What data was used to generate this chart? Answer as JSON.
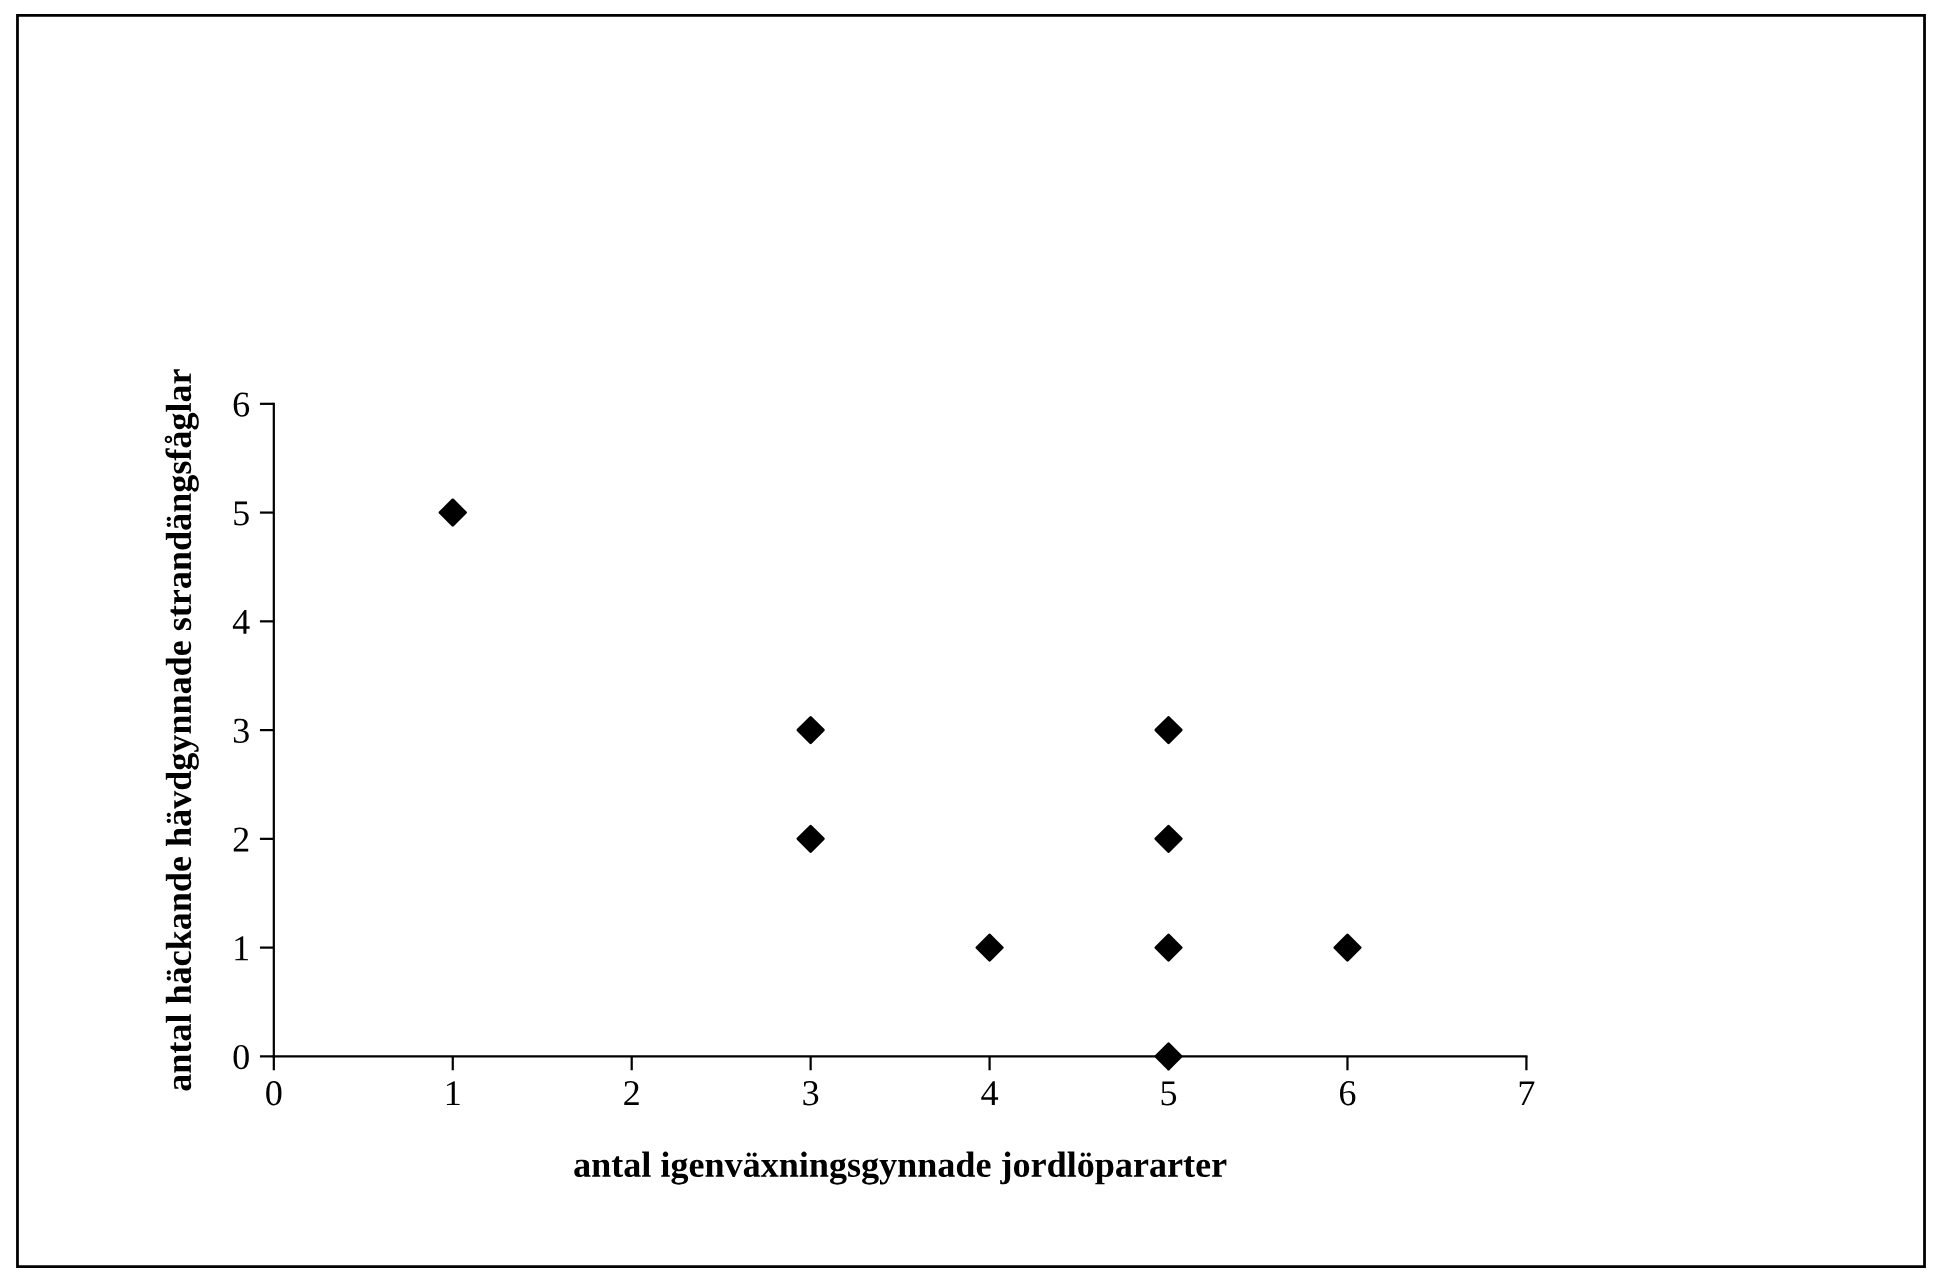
{
  "chart_data": {
    "type": "scatter",
    "xlabel": "antal igenväxningsgynnade jordlöpararter",
    "ylabel": "antal häckande hävdgynnade strandängsfåglar",
    "series": [
      {
        "color": "#000000",
        "x": [
          1,
          3,
          3,
          4,
          5,
          5,
          5,
          5,
          6
        ],
        "values": [
          5,
          3,
          2,
          1,
          3,
          2,
          1,
          0,
          1
        ]
      }
    ],
    "xlim": [
      0,
      7
    ],
    "xticks": [
      0,
      1,
      2,
      3,
      4,
      5,
      6,
      7
    ],
    "ylim": [
      0,
      6
    ],
    "yticks": [
      0,
      1,
      2,
      3,
      4,
      5,
      6
    ],
    "marker": "diamond",
    "grid": false,
    "legend": false
  }
}
